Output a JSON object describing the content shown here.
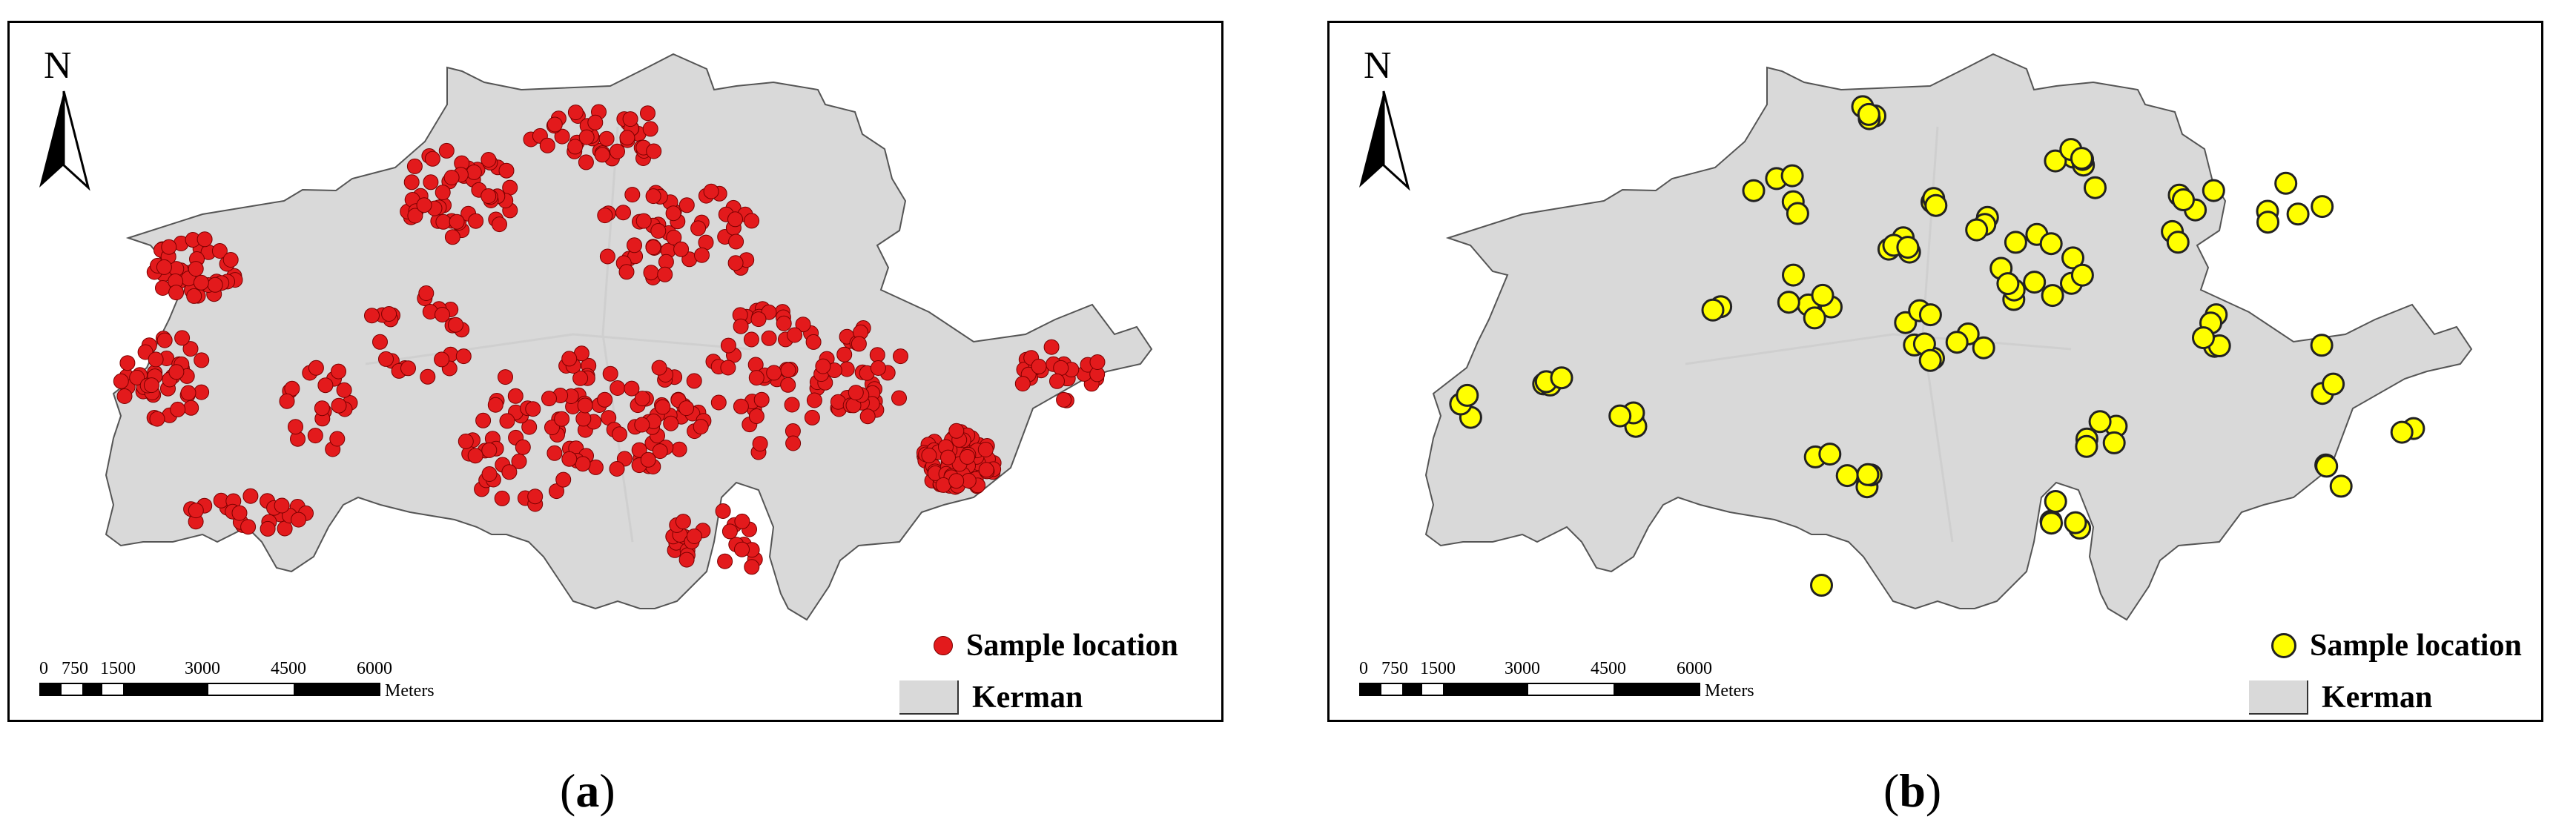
{
  "panels": [
    {
      "id": "a",
      "caption_open": "(",
      "caption_letter": "a",
      "caption_close": ")",
      "north_label": "N",
      "legend": {
        "point_label": "Sample location",
        "area_label": "Kerman"
      },
      "scale": {
        "ticks": [
          "0",
          "750",
          "1500",
          "3000",
          "4500",
          "6000"
        ],
        "unit": "Meters"
      },
      "marker": {
        "fill": "#e31a1c",
        "stroke": "#7a0000",
        "style": "small-red"
      }
    },
    {
      "id": "b",
      "caption_open": "(",
      "caption_letter": "b",
      "caption_close": ")",
      "north_label": "N",
      "legend": {
        "point_label": "Sample location",
        "area_label": "Kerman"
      },
      "scale": {
        "ticks": [
          "0",
          "750",
          "1500",
          "3000",
          "4500",
          "6000"
        ],
        "unit": "Meters"
      },
      "marker": {
        "fill": "#ffff00",
        "stroke": "#222222",
        "style": "large-yellow"
      }
    }
  ],
  "colors": {
    "city_fill": "#d9d9d9",
    "city_stroke": "#555555"
  }
}
